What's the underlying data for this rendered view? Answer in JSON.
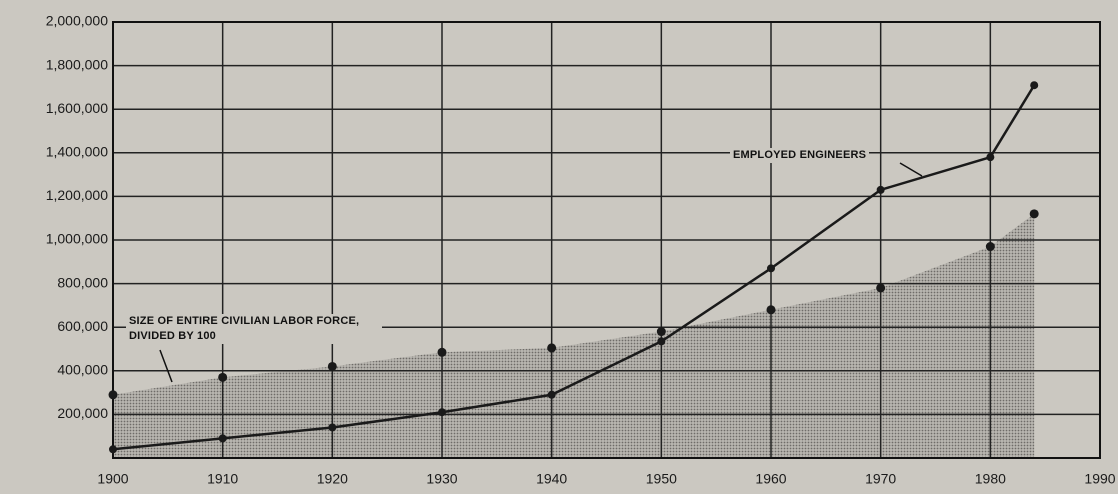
{
  "chart_data": {
    "type": "line",
    "x": [
      1900,
      1910,
      1920,
      1930,
      1940,
      1950,
      1960,
      1970,
      1980,
      1984
    ],
    "series": [
      {
        "name": "EMPLOYED ENGINEERS",
        "color": "#1a1a1a",
        "style": "line",
        "values": [
          40000,
          90000,
          140000,
          210000,
          290000,
          535000,
          870000,
          1230000,
          1380000,
          1710000
        ]
      },
      {
        "name": "SIZE OF ENTIRE CIVILIAN LABOR FORCE, DIVIDED BY 100",
        "color": "#1a1a1a",
        "style": "dots-area",
        "values": [
          290000,
          370000,
          420000,
          485000,
          505000,
          580000,
          680000,
          780000,
          970000,
          1120000
        ]
      }
    ],
    "xlim": [
      1900,
      1990
    ],
    "xticks": [
      1900,
      1910,
      1920,
      1930,
      1940,
      1950,
      1960,
      1970,
      1980,
      1990
    ],
    "ylim": [
      0,
      2000000
    ],
    "yticks": [
      {
        "value": 200000,
        "label": "200,000"
      },
      {
        "value": 400000,
        "label": "400,000"
      },
      {
        "value": 600000,
        "label": "600,000"
      },
      {
        "value": 800000,
        "label": "800,000"
      },
      {
        "value": 1000000,
        "label": "1,000,000"
      },
      {
        "value": 1200000,
        "label": "1,200,000"
      },
      {
        "value": 1400000,
        "label": "1,400,000"
      },
      {
        "value": 1600000,
        "label": "1,600,000"
      },
      {
        "value": 1800000,
        "label": "1,800,000"
      },
      {
        "value": 2000000,
        "label": "2,000,000"
      }
    ],
    "grid": true
  }
}
